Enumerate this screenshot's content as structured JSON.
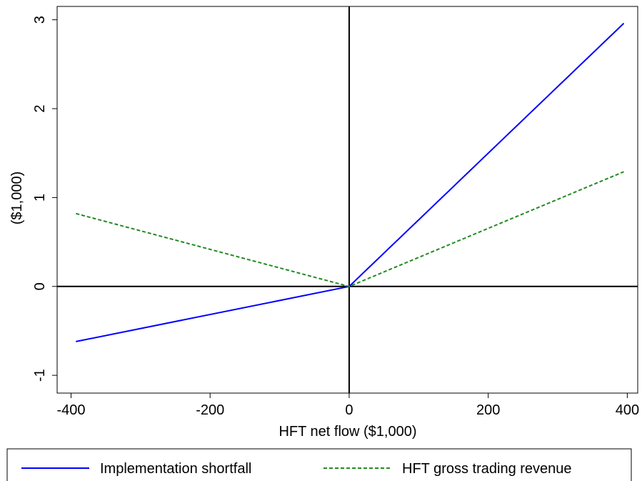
{
  "chart_data": {
    "type": "line",
    "title": "",
    "xlabel": "HFT net flow ($1,000)",
    "ylabel": "($1,000)",
    "xlim": [
      -420,
      415
    ],
    "ylim": [
      -1.2,
      3.15
    ],
    "xticks": [
      -400,
      -200,
      0,
      200,
      400
    ],
    "xtick_labels": [
      "-400",
      "-200",
      "0",
      "200",
      "400"
    ],
    "yticks": [
      -1,
      0,
      1,
      2,
      3
    ],
    "ytick_labels": [
      "-1",
      "0",
      "1",
      "2",
      "3"
    ],
    "grid": false,
    "reference_lines": {
      "x": 0,
      "y": 0
    },
    "legend_position": "bottom",
    "series": [
      {
        "name": "Implementation shortfall",
        "color": "#0000ff",
        "style": "solid",
        "x": [
          -393,
          0,
          395
        ],
        "y": [
          -0.62,
          0,
          2.96
        ]
      },
      {
        "name": "HFT gross trading revenue",
        "color": "#228b22",
        "style": "dashed",
        "x": [
          -393,
          0,
          395
        ],
        "y": [
          0.82,
          0,
          1.29
        ]
      }
    ]
  }
}
